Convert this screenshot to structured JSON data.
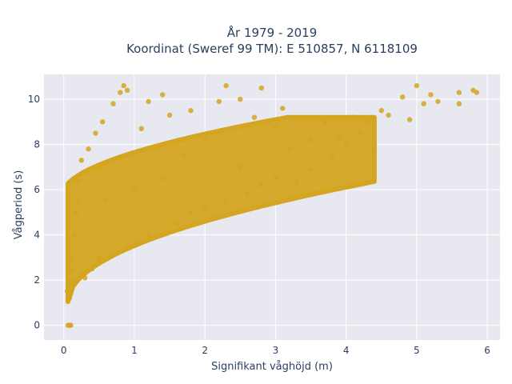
{
  "chart_data": {
    "type": "scatter",
    "title_line1": "År 1979 - 2019",
    "title_line2": "Koordinat (Sweref 99 TM): E 510857, N 6118109",
    "xlabel": "Signifikant våghöjd (m)",
    "ylabel": "Vågperiod (s)",
    "xlim": [
      -0.28,
      6.18
    ],
    "ylim": [
      -0.65,
      11.1
    ],
    "x_ticks": [
      0,
      1,
      2,
      3,
      4,
      5,
      6
    ],
    "y_ticks": [
      0,
      2,
      4,
      6,
      8,
      10
    ],
    "grid": true,
    "colors": {
      "marker": "#d4a520",
      "plot_bg": "#e8e8f0",
      "grid": "#ffffff",
      "text": "#2a3f5f"
    },
    "series": [
      {
        "points": [
          [
            0.08,
            0.0
          ],
          [
            0.1,
            0.0
          ],
          [
            0.06,
            0.0
          ],
          [
            0.05,
            1.5
          ],
          [
            0.08,
            1.2
          ],
          [
            0.1,
            1.9
          ],
          [
            0.1,
            3.0
          ],
          [
            0.12,
            2.4
          ],
          [
            0.15,
            4.0
          ],
          [
            0.18,
            5.0
          ],
          [
            0.2,
            5.5
          ],
          [
            0.2,
            6.4
          ],
          [
            0.25,
            7.3
          ],
          [
            0.3,
            6.8
          ],
          [
            0.3,
            2.1
          ],
          [
            0.35,
            7.8
          ],
          [
            0.4,
            2.5
          ],
          [
            0.45,
            8.5
          ],
          [
            0.5,
            3.0
          ],
          [
            0.5,
            7.0
          ],
          [
            0.55,
            9.0
          ],
          [
            0.6,
            5.5
          ],
          [
            0.7,
            9.8
          ],
          [
            0.8,
            10.3
          ],
          [
            0.85,
            10.6
          ],
          [
            0.9,
            10.4
          ],
          [
            0.9,
            3.5
          ],
          [
            1.0,
            6.0
          ],
          [
            1.1,
            8.7
          ],
          [
            1.2,
            4.0
          ],
          [
            1.2,
            9.9
          ],
          [
            1.4,
            10.2
          ],
          [
            1.4,
            6.5
          ],
          [
            1.5,
            9.3
          ],
          [
            1.6,
            4.5
          ],
          [
            1.7,
            7.5
          ],
          [
            1.8,
            5.0
          ],
          [
            1.8,
            9.5
          ],
          [
            2.0,
            8.2
          ],
          [
            2.0,
            5.2
          ],
          [
            2.2,
            9.9
          ],
          [
            2.3,
            10.6
          ],
          [
            2.3,
            5.5
          ],
          [
            2.5,
            7.0
          ],
          [
            2.5,
            10.0
          ],
          [
            2.6,
            5.8
          ],
          [
            2.7,
            9.2
          ],
          [
            2.8,
            10.5
          ],
          [
            2.8,
            6.2
          ],
          [
            3.0,
            6.5
          ],
          [
            3.0,
            8.8
          ],
          [
            3.1,
            9.6
          ],
          [
            3.2,
            7.8
          ],
          [
            3.3,
            6.3
          ],
          [
            3.5,
            8.2
          ],
          [
            3.5,
            6.9
          ],
          [
            3.7,
            9.0
          ],
          [
            3.8,
            7.5
          ],
          [
            3.9,
            8.3
          ],
          [
            4.0,
            8.0
          ],
          [
            4.1,
            9.2
          ],
          [
            4.2,
            8.5
          ],
          [
            4.3,
            9.0
          ],
          [
            4.4,
            7.8
          ],
          [
            4.5,
            9.5
          ],
          [
            4.6,
            9.3
          ],
          [
            4.8,
            10.1
          ],
          [
            4.9,
            9.1
          ],
          [
            5.0,
            10.6
          ],
          [
            5.1,
            9.8
          ],
          [
            5.2,
            10.2
          ],
          [
            5.3,
            9.9
          ],
          [
            5.6,
            10.3
          ],
          [
            5.6,
            9.8
          ],
          [
            5.8,
            10.4
          ],
          [
            5.85,
            10.3
          ]
        ]
      }
    ]
  }
}
